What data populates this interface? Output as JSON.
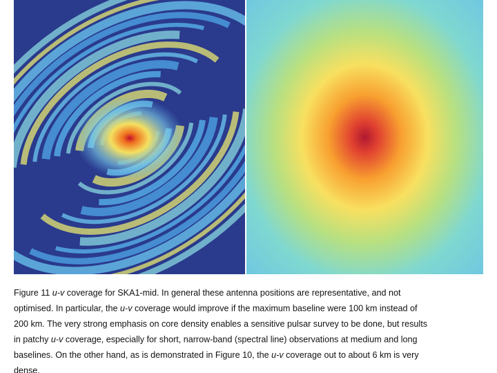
{
  "caption": {
    "lines": [
      [
        "Figure 11 ",
        "u-v",
        " coverage for SKA1-mid.  In general these antenna positions are representative, and not"
      ],
      [
        "optimised.   In particular, the ",
        "u-v",
        " coverage would improve if the maximum baseline were 100 km instead of"
      ],
      [
        "200 km. The very strong emphasis on core density enables a sensitive pulsar survey to be done, but results"
      ],
      [
        "in patchy ",
        "u-v",
        " coverage, especially for short, narrow-band (spectral line) observations at medium and long"
      ],
      [
        "baselines.  On the other hand, as is demonstrated in Figure 10, the ",
        "u-v",
        " coverage out to about 6 km is very"
      ],
      [
        "dense."
      ]
    ]
  }
}
